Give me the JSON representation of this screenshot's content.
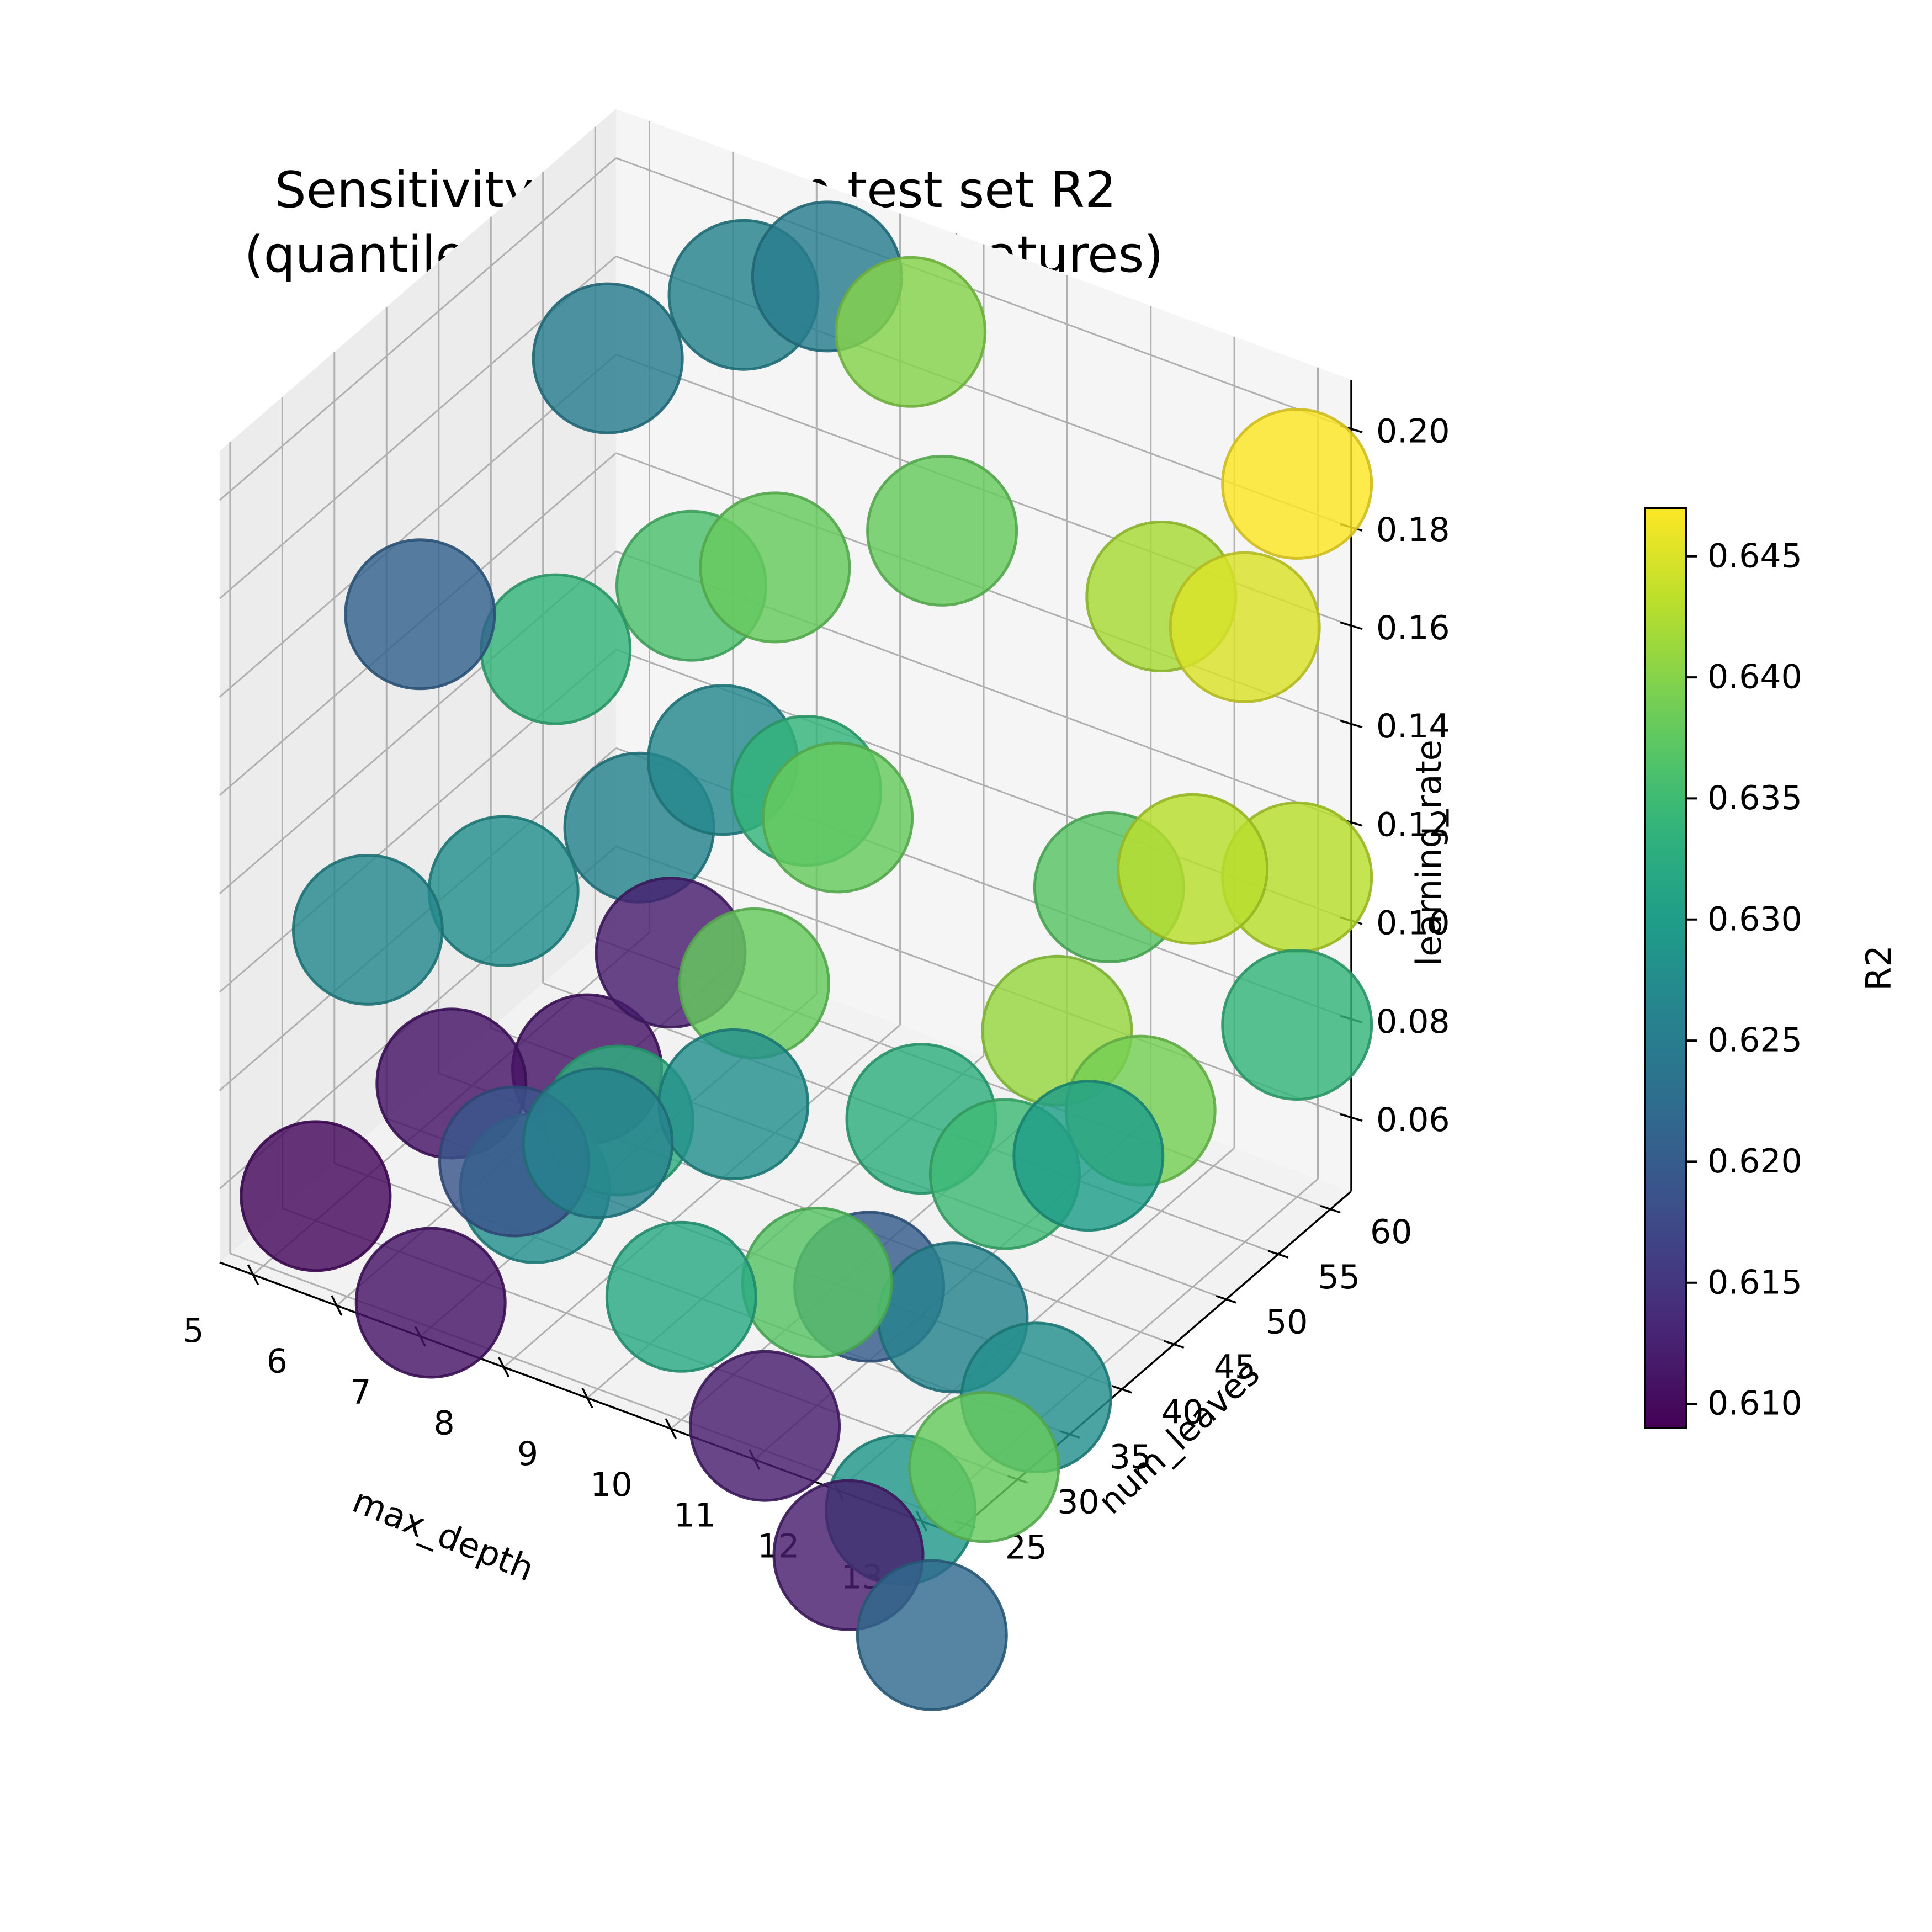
{
  "chart_data": {
    "type": "scatter",
    "subtype": "3d-bubble",
    "title_lines": [
      "Sensitivity Analysis on test set R2",
      "(quantile 0.5 model, PCAed features)"
    ],
    "axes": {
      "x": {
        "label": "max_depth",
        "range": [
          4.6,
          13.4
        ],
        "ticks": [
          5,
          6,
          7,
          8,
          9,
          10,
          11,
          12,
          13
        ]
      },
      "y": {
        "label": "num_leaves",
        "range": [
          24.0,
          62.0
        ],
        "ticks": [
          25,
          30,
          35,
          40,
          45,
          50,
          55,
          60
        ]
      },
      "z": {
        "label": "learning_rate",
        "range": [
          0.045,
          0.21
        ],
        "ticks": [
          0.06,
          0.08,
          0.1,
          0.12,
          0.14,
          0.16,
          0.18,
          0.2
        ]
      }
    },
    "grid": true,
    "colorbar": {
      "label": "R2",
      "colormap": "viridis",
      "range": [
        0.609,
        0.647
      ],
      "ticks": [
        0.61,
        0.615,
        0.62,
        0.625,
        0.63,
        0.635,
        0.64,
        0.645
      ],
      "tick_labels": [
        "0.610",
        "0.615",
        "0.620",
        "0.625",
        "0.630",
        "0.635",
        "0.640",
        "0.645"
      ],
      "placement": "right"
    },
    "points": [
      {
        "x": 5,
        "y": 30,
        "z": 0.05,
        "r2": 0.61
      },
      {
        "x": 5,
        "y": 35,
        "z": 0.095,
        "r2": 0.627
      },
      {
        "x": 5,
        "y": 40,
        "z": 0.15,
        "r2": 0.621
      },
      {
        "x": 7,
        "y": 25,
        "z": 0.05,
        "r2": 0.611
      },
      {
        "x": 6,
        "y": 35,
        "z": 0.07,
        "r2": 0.611
      },
      {
        "x": 6,
        "y": 40,
        "z": 0.1,
        "r2": 0.628
      },
      {
        "x": 6,
        "y": 45,
        "z": 0.14,
        "r2": 0.634
      },
      {
        "x": 6,
        "y": 50,
        "z": 0.19,
        "r2": 0.625
      },
      {
        "x": 7,
        "y": 35,
        "z": 0.055,
        "r2": 0.628
      },
      {
        "x": 7,
        "y": 40,
        "z": 0.07,
        "r2": 0.611
      },
      {
        "x": 7,
        "y": 45,
        "z": 0.11,
        "r2": 0.626
      },
      {
        "x": 7,
        "y": 50,
        "z": 0.15,
        "r2": 0.636
      },
      {
        "x": 7,
        "y": 55,
        "z": 0.2,
        "r2": 0.626
      },
      {
        "x": 8,
        "y": 25,
        "z": 0.085,
        "r2": 0.619
      },
      {
        "x": 8,
        "y": 35,
        "z": 0.075,
        "r2": 0.633
      },
      {
        "x": 8,
        "y": 40,
        "z": 0.1,
        "r2": 0.612
      },
      {
        "x": 8,
        "y": 45,
        "z": 0.13,
        "r2": 0.627
      },
      {
        "x": 8,
        "y": 50,
        "z": 0.16,
        "r2": 0.638
      },
      {
        "x": 8,
        "y": 55,
        "z": 0.21,
        "r2": 0.625
      },
      {
        "x": 9,
        "y": 40,
        "z": 0.1,
        "r2": 0.638
      },
      {
        "x": 9,
        "y": 45,
        "z": 0.13,
        "r2": 0.634
      },
      {
        "x": 9,
        "y": 25,
        "z": 0.095,
        "r2": 0.626
      },
      {
        "x": 10,
        "y": 30,
        "z": 0.1,
        "r2": 0.628
      },
      {
        "x": 10,
        "y": 40,
        "z": 0.14,
        "r2": 0.638
      },
      {
        "x": 9,
        "y": 55,
        "z": 0.205,
        "r2": 0.64
      },
      {
        "x": 10,
        "y": 50,
        "z": 0.18,
        "r2": 0.638
      },
      {
        "x": 11,
        "y": 25,
        "z": 0.05,
        "r2": 0.612
      },
      {
        "x": 10,
        "y": 25,
        "z": 0.07,
        "r2": 0.632
      },
      {
        "x": 12,
        "y": 25,
        "z": 0.03,
        "r2": 0.612
      },
      {
        "x": 12,
        "y": 30,
        "z": 0.03,
        "r2": 0.629
      },
      {
        "x": 11,
        "y": 35,
        "z": 0.06,
        "r2": 0.62
      },
      {
        "x": 11,
        "y": 30,
        "z": 0.07,
        "r2": 0.637
      },
      {
        "x": 11,
        "y": 40,
        "z": 0.085,
        "r2": 0.633
      },
      {
        "x": 12,
        "y": 35,
        "z": 0.06,
        "r2": 0.626
      },
      {
        "x": 12,
        "y": 40,
        "z": 0.08,
        "r2": 0.635
      },
      {
        "x": 12,
        "y": 45,
        "z": 0.1,
        "r2": 0.641
      },
      {
        "x": 12,
        "y": 50,
        "z": 0.12,
        "r2": 0.637
      },
      {
        "x": 12,
        "y": 55,
        "z": 0.17,
        "r2": 0.642
      },
      {
        "x": 13,
        "y": 25,
        "z": 0.02,
        "r2": 0.622
      },
      {
        "x": 13,
        "y": 35,
        "z": 0.05,
        "r2": 0.628
      },
      {
        "x": 13,
        "y": 30,
        "z": 0.045,
        "r2": 0.638
      },
      {
        "x": 13,
        "y": 40,
        "z": 0.09,
        "r2": 0.63
      },
      {
        "x": 13,
        "y": 45,
        "z": 0.09,
        "r2": 0.639
      },
      {
        "x": 13,
        "y": 50,
        "z": 0.13,
        "r2": 0.643
      },
      {
        "x": 13,
        "y": 55,
        "z": 0.17,
        "r2": 0.645
      },
      {
        "x": 13,
        "y": 60,
        "z": 0.19,
        "r2": 0.647
      },
      {
        "x": 13,
        "y": 60,
        "z": 0.11,
        "r2": 0.643
      },
      {
        "x": 13,
        "y": 60,
        "z": 0.08,
        "r2": 0.634
      }
    ]
  }
}
